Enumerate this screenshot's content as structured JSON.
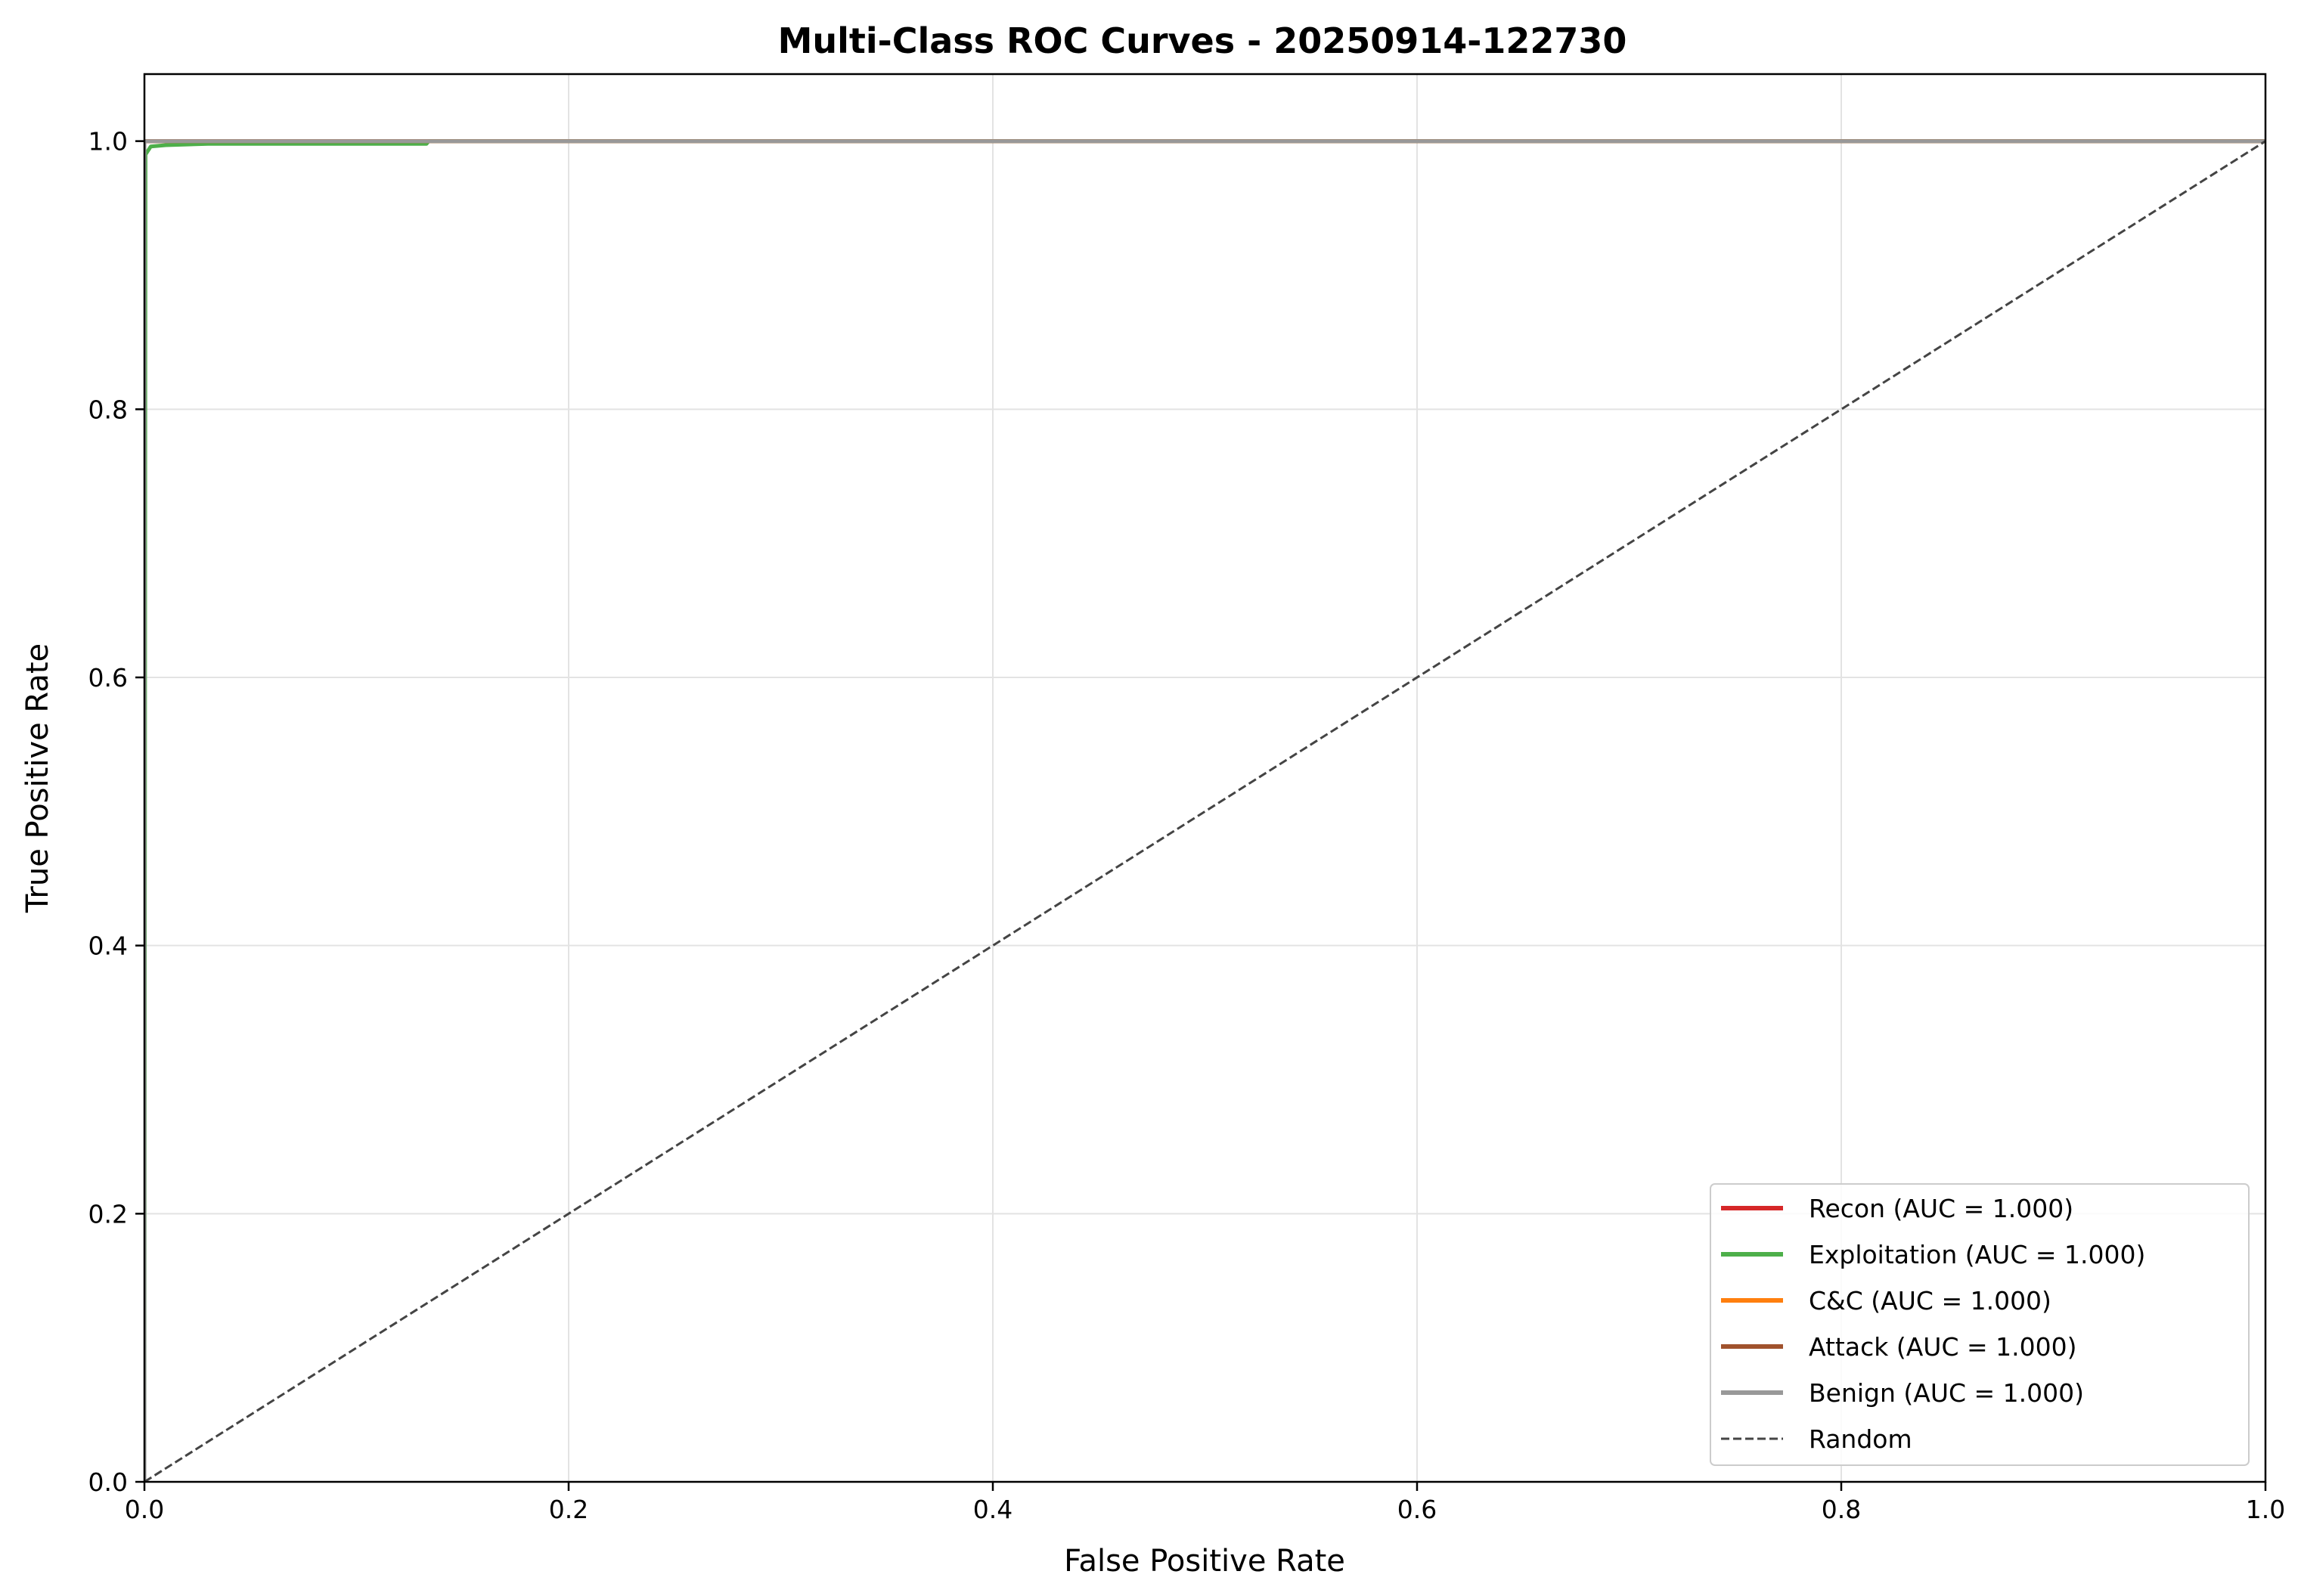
{
  "chart_data": {
    "type": "line",
    "title": "Multi-Class ROC Curves - 20250914-122730",
    "xlabel": "False Positive Rate",
    "ylabel": "True Positive Rate",
    "xlim": [
      0,
      1
    ],
    "ylim": [
      0,
      1.05
    ],
    "x_ticks": [
      0,
      0.2,
      0.4,
      0.6,
      0.8,
      1.0
    ],
    "x_tick_labels": [
      "0.0",
      "0.2",
      "0.4",
      "0.6",
      "0.8",
      "1.0"
    ],
    "y_ticks": [
      0,
      0.2,
      0.4,
      0.6,
      0.8,
      1.0
    ],
    "y_tick_labels": [
      "0.0",
      "0.2",
      "0.4",
      "0.6",
      "0.8",
      "1.0"
    ],
    "grid": true,
    "legend_position": "lower-right",
    "series": [
      {
        "name": "Recon (AUC = 1.000)",
        "color": "#d62728",
        "style": "solid",
        "x": [
          0,
          0,
          1
        ],
        "y": [
          0,
          1.0,
          1.0
        ]
      },
      {
        "name": "Exploitation (AUC = 1.000)",
        "color": "#4daf4a",
        "style": "solid",
        "x": [
          0,
          0.0005,
          0.003,
          0.01,
          0.03,
          0.133,
          0.134,
          1.0
        ],
        "y": [
          0,
          0.99,
          0.996,
          0.997,
          0.998,
          0.998,
          1.0,
          1.0
        ]
      },
      {
        "name": "C&C (AUC = 1.000)",
        "color": "#ff7f0e",
        "style": "solid",
        "x": [
          0,
          0,
          1
        ],
        "y": [
          0,
          1.0,
          1.0
        ]
      },
      {
        "name": "Attack (AUC = 1.000)",
        "color": "#a0522d",
        "style": "solid",
        "x": [
          0,
          0,
          1
        ],
        "y": [
          0,
          1.0,
          1.0
        ]
      },
      {
        "name": "Benign (AUC = 1.000)",
        "color": "#999999",
        "style": "solid",
        "x": [
          0,
          0,
          1
        ],
        "y": [
          0,
          1.0,
          1.0
        ]
      },
      {
        "name": "Random",
        "color": "#444444",
        "style": "dashed",
        "x": [
          0,
          1
        ],
        "y": [
          0,
          1
        ]
      }
    ]
  }
}
